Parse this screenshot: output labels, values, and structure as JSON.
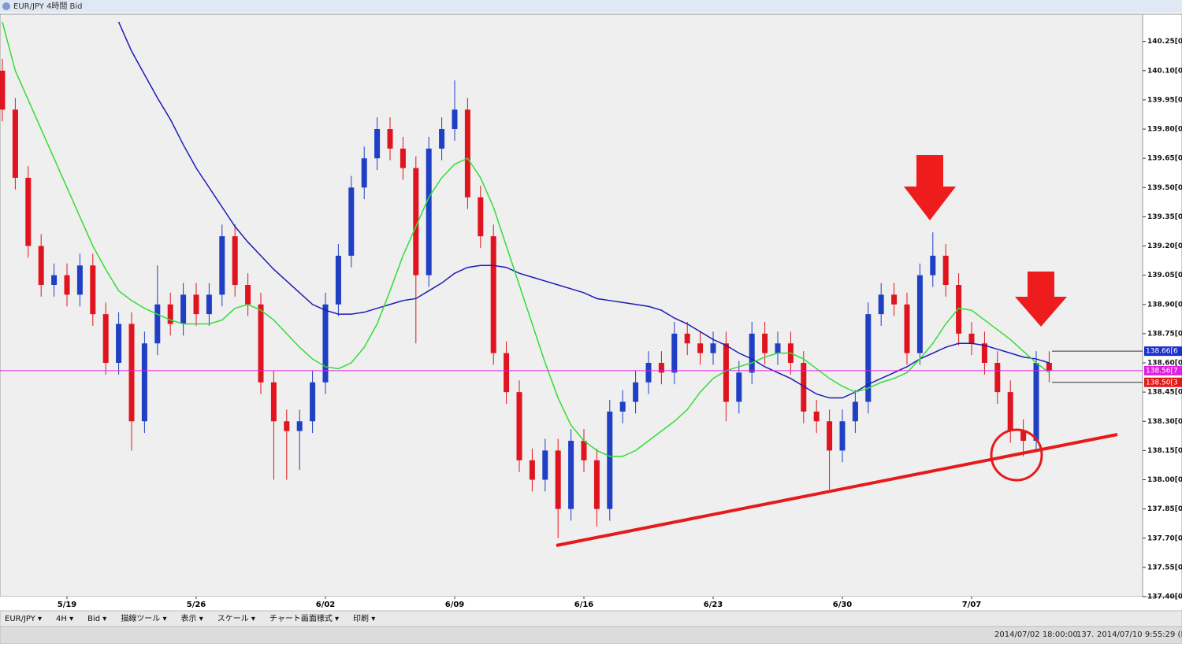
{
  "window_title": "EUR/JPY 4時間 Bid",
  "toolbar": [
    "EUR/JPY ▾",
    "4H ▾",
    "Bid ▾",
    "描線ツール ▾",
    "表示 ▾",
    "スケール ▾",
    "チャート画面様式 ▾",
    "印刷 ▾"
  ],
  "status": [
    "2014/07/02 18:00:00",
    "137.",
    "2014/07/10 9:55:29 (Lo"
  ],
  "chart_data": {
    "type": "candlestick",
    "categories": [
      null,
      null,
      null,
      null,
      null,
      "5/19",
      null,
      null,
      null,
      null,
      null,
      null,
      null,
      null,
      null,
      "5/26",
      null,
      null,
      null,
      null,
      null,
      null,
      null,
      null,
      null,
      "6/02",
      null,
      null,
      null,
      null,
      null,
      null,
      null,
      null,
      null,
      "6/09",
      null,
      null,
      null,
      null,
      null,
      null,
      null,
      null,
      null,
      "6/16",
      null,
      null,
      null,
      null,
      null,
      null,
      null,
      null,
      null,
      "6/23",
      null,
      null,
      null,
      null,
      null,
      null,
      null,
      null,
      null,
      "6/30",
      null,
      null,
      null,
      null,
      null,
      null,
      null,
      null,
      null,
      "7/07",
      null,
      null,
      null,
      null,
      null,
      null
    ],
    "open": [
      140.1,
      139.9,
      139.55,
      139.2,
      139.0,
      139.05,
      138.95,
      139.1,
      138.85,
      138.6,
      138.8,
      138.3,
      138.7,
      138.9,
      138.8,
      138.95,
      138.85,
      138.95,
      139.25,
      139.0,
      138.9,
      138.5,
      138.3,
      138.25,
      138.3,
      138.5,
      138.9,
      139.15,
      139.5,
      139.65,
      139.8,
      139.7,
      139.6,
      139.05,
      139.7,
      139.8,
      139.9,
      139.45,
      139.25,
      138.65,
      138.45,
      138.1,
      138.0,
      138.15,
      137.85,
      138.2,
      138.1,
      137.85,
      138.35,
      138.4,
      138.5,
      138.6,
      138.55,
      138.75,
      138.7,
      138.65,
      138.7,
      138.4,
      138.55,
      138.75,
      138.65,
      138.7,
      138.6,
      138.35,
      138.3,
      138.15,
      138.3,
      138.4,
      138.85,
      138.95,
      138.9,
      138.65,
      139.05,
      139.15,
      139.0,
      138.75,
      138.7,
      138.6,
      138.45,
      138.25,
      138.2,
      138.6
    ],
    "high": [
      140.16,
      139.96,
      139.61,
      139.26,
      139.11,
      139.11,
      139.16,
      139.16,
      138.91,
      138.86,
      138.86,
      138.76,
      139.1,
      138.96,
      139.01,
      139.01,
      139.01,
      139.31,
      139.31,
      139.06,
      138.96,
      138.56,
      138.36,
      138.36,
      138.56,
      138.96,
      139.21,
      139.56,
      139.71,
      139.86,
      139.86,
      139.76,
      139.66,
      139.76,
      139.86,
      140.05,
      139.96,
      139.51,
      139.31,
      138.71,
      138.51,
      138.16,
      138.21,
      138.21,
      138.26,
      138.26,
      138.16,
      138.41,
      138.46,
      138.56,
      138.66,
      138.66,
      138.81,
      138.81,
      138.76,
      138.76,
      138.76,
      138.61,
      138.81,
      138.81,
      138.76,
      138.76,
      138.66,
      138.41,
      138.36,
      138.36,
      138.46,
      138.91,
      139.01,
      139.01,
      138.96,
      139.11,
      139.27,
      139.21,
      139.06,
      138.81,
      138.76,
      138.66,
      138.51,
      138.31,
      138.66,
      138.66
    ],
    "low": [
      139.84,
      139.49,
      139.14,
      138.94,
      138.94,
      138.89,
      138.89,
      138.79,
      138.54,
      138.54,
      138.15,
      138.24,
      138.64,
      138.74,
      138.74,
      138.79,
      138.79,
      138.89,
      138.94,
      138.84,
      138.44,
      138.0,
      138.0,
      138.05,
      138.24,
      138.44,
      138.84,
      139.09,
      139.44,
      139.59,
      139.64,
      139.54,
      138.7,
      138.99,
      139.64,
      139.74,
      139.39,
      139.19,
      138.59,
      138.39,
      138.04,
      137.94,
      137.94,
      137.7,
      137.79,
      138.04,
      137.76,
      137.79,
      138.29,
      138.34,
      138.44,
      138.49,
      138.49,
      138.64,
      138.59,
      138.59,
      138.3,
      138.34,
      138.49,
      138.59,
      138.59,
      138.54,
      138.29,
      138.24,
      137.95,
      138.09,
      138.24,
      138.34,
      138.79,
      138.84,
      138.59,
      138.59,
      138.99,
      138.94,
      138.69,
      138.64,
      138.54,
      138.39,
      138.19,
      138.12,
      138.14,
      138.5
    ],
    "close": [
      139.9,
      139.55,
      139.2,
      139.0,
      139.05,
      138.95,
      139.1,
      138.85,
      138.6,
      138.8,
      138.3,
      138.7,
      138.9,
      138.8,
      138.95,
      138.85,
      138.95,
      139.25,
      139.0,
      138.9,
      138.5,
      138.3,
      138.25,
      138.3,
      138.5,
      138.9,
      139.15,
      139.5,
      139.65,
      139.8,
      139.7,
      139.6,
      139.05,
      139.7,
      139.8,
      139.9,
      139.45,
      139.25,
      138.65,
      138.45,
      138.1,
      138.0,
      138.15,
      137.85,
      138.2,
      138.1,
      137.85,
      138.35,
      138.4,
      138.5,
      138.6,
      138.55,
      138.75,
      138.7,
      138.65,
      138.7,
      138.4,
      138.55,
      138.75,
      138.65,
      138.7,
      138.6,
      138.35,
      138.3,
      138.15,
      138.3,
      138.4,
      138.85,
      138.95,
      138.9,
      138.65,
      139.05,
      139.15,
      139.0,
      138.75,
      138.7,
      138.6,
      138.45,
      138.25,
      138.2,
      138.6,
      138.56
    ],
    "up_color": "#1f3fc4",
    "down_color": "#e0141e",
    "series": [
      {
        "color": "#1c1cb4",
        "values": [
          null,
          null,
          null,
          null,
          null,
          null,
          null,
          null,
          null,
          140.35,
          140.2,
          140.08,
          139.96,
          139.85,
          139.72,
          139.6,
          139.5,
          139.4,
          139.3,
          139.22,
          139.15,
          139.08,
          139.02,
          138.96,
          138.9,
          138.87,
          138.85,
          138.85,
          138.86,
          138.88,
          138.9,
          138.92,
          138.93,
          138.97,
          139.01,
          139.06,
          139.09,
          139.1,
          139.1,
          139.09,
          139.06,
          139.04,
          139.02,
          139.0,
          138.98,
          138.96,
          138.93,
          138.92,
          138.91,
          138.9,
          138.89,
          138.87,
          138.83,
          138.8,
          138.76,
          138.72,
          138.69,
          138.65,
          138.62,
          138.58,
          138.55,
          138.52,
          138.48,
          138.44,
          138.42,
          138.42,
          138.45,
          138.49,
          138.52,
          138.55,
          138.58,
          138.62,
          138.65,
          138.68,
          138.7,
          138.7,
          138.69,
          138.67,
          138.65,
          138.63,
          138.62,
          138.6
        ]
      },
      {
        "color": "#33dd33",
        "values": [
          140.35,
          140.1,
          139.95,
          139.8,
          139.65,
          139.5,
          139.35,
          139.2,
          139.08,
          138.97,
          138.92,
          138.88,
          138.85,
          138.82,
          138.8,
          138.8,
          138.8,
          138.82,
          138.88,
          138.9,
          138.87,
          138.82,
          138.75,
          138.68,
          138.62,
          138.58,
          138.57,
          138.6,
          138.68,
          138.8,
          138.97,
          139.15,
          139.3,
          139.45,
          139.55,
          139.62,
          139.65,
          139.55,
          139.4,
          139.2,
          139.0,
          138.8,
          138.6,
          138.42,
          138.28,
          138.2,
          138.15,
          138.12,
          138.12,
          138.15,
          138.2,
          138.25,
          138.3,
          138.36,
          138.45,
          138.52,
          138.56,
          138.58,
          138.6,
          138.63,
          138.65,
          138.65,
          138.62,
          138.57,
          138.52,
          138.48,
          138.45,
          138.47,
          138.5,
          138.52,
          138.55,
          138.62,
          138.7,
          138.8,
          138.88,
          138.87,
          138.82,
          138.77,
          138.72,
          138.66,
          138.6,
          138.55
        ]
      }
    ],
    "ylim": [
      137.4,
      140.39
    ],
    "yticks": [
      {
        "value": 140.25,
        "label": "140.25[0]"
      },
      {
        "value": 140.1,
        "label": "140.10[0]"
      },
      {
        "value": 139.95,
        "label": "139.95[0]"
      },
      {
        "value": 139.8,
        "label": "139.80[0]"
      },
      {
        "value": 139.65,
        "label": "139.65[0]"
      },
      {
        "value": 139.5,
        "label": "139.50[0]"
      },
      {
        "value": 139.35,
        "label": "139.35[0]"
      },
      {
        "value": 139.2,
        "label": "139.20[0]"
      },
      {
        "value": 139.05,
        "label": "139.05[0]"
      },
      {
        "value": 138.9,
        "label": "138.90[0]"
      },
      {
        "value": 138.75,
        "label": "138.75[0]"
      },
      {
        "value": 138.6,
        "label": "138.60[0]"
      },
      {
        "value": 138.45,
        "label": "138.45[0]"
      },
      {
        "value": 138.3,
        "label": "138.30[0]"
      },
      {
        "value": 138.15,
        "label": "138.15[0]"
      },
      {
        "value": 138.0,
        "label": "138.00[0]"
      },
      {
        "value": 137.85,
        "label": "137.85[0]"
      },
      {
        "value": 137.7,
        "label": "137.70[0]"
      },
      {
        "value": 137.55,
        "label": "137.55[0]"
      },
      {
        "value": 137.4,
        "label": "137.40[0]"
      }
    ],
    "price_labels": [
      {
        "value": 138.66,
        "label": "138.66[6",
        "color": "#1a2fd0"
      },
      {
        "value": 138.56,
        "label": "138.56[7",
        "color": "#e020e0"
      },
      {
        "value": 138.5,
        "label": "138.50[3",
        "color": "#e01a1a"
      }
    ]
  }
}
